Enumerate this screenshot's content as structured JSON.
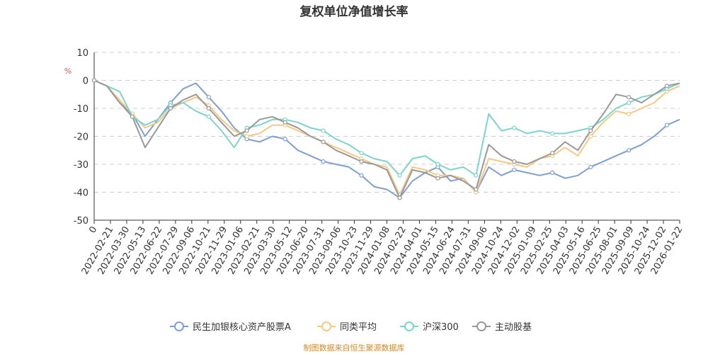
{
  "chart_data": {
    "type": "line",
    "title": "复权单位净值增长率",
    "ylabel": "%",
    "ylim": [
      -50,
      10
    ],
    "yticks": [
      10,
      0,
      -10,
      -20,
      -30,
      -40,
      -50
    ],
    "grid": true,
    "legend_position": "bottom",
    "x_tick_labels": [
      "0",
      "2022-02-21",
      "2022-03-30",
      "2022-05-13",
      "2022-06-22",
      "2022-07-29",
      "2022-09-06",
      "2022-10-21",
      "2022-11-29",
      "2023-01-06",
      "2023-02-21",
      "2023-03-30",
      "2023-05-12",
      "2023-06-20",
      "2023-07-31",
      "2023-09-06",
      "2023-10-23",
      "2023-11-29",
      "2024-01-08",
      "2024-02-22",
      "2024-04-01",
      "2024-05-15",
      "2024-06-24",
      "2024-07-31",
      "2024-09-06",
      "2024-10-24",
      "2024-12-02",
      "2025-01-09",
      "2025-02-25",
      "2025-04-03",
      "2025-05-16",
      "2025-06-25",
      "2025-08-01",
      "2025-09-09",
      "2025-10-24",
      "2025-12-02",
      "2026-01-22"
    ],
    "series": [
      {
        "name": "民生加银核心资产股票A",
        "color": "#7f9fcf",
        "values": [
          0,
          -2,
          -8,
          -12,
          -20,
          -14,
          -8,
          -3,
          -1,
          -6,
          -11,
          -17,
          -21,
          -22,
          -20,
          -21,
          -25,
          -27,
          -29,
          -30,
          -31,
          -34,
          -38,
          -39,
          -42,
          -36,
          -33,
          -31,
          -36,
          -35,
          -40,
          -31,
          -34,
          -32,
          -33,
          -34,
          -33,
          -35,
          -34,
          -31,
          -29,
          -27,
          -25,
          -23,
          -20,
          -16,
          -14
        ]
      },
      {
        "name": "同类平均",
        "color": "#f6c983",
        "values": [
          0,
          -2,
          -7,
          -12,
          -17,
          -15,
          -10,
          -8,
          -6,
          -9,
          -14,
          -18,
          -20,
          -19,
          -16,
          -16,
          -18,
          -20,
          -22,
          -24,
          -26,
          -28,
          -30,
          -31,
          -41,
          -31,
          -32,
          -34,
          -34,
          -35,
          -40,
          -28,
          -29,
          -30,
          -31,
          -28,
          -27,
          -24,
          -27,
          -20,
          -15,
          -11,
          -12,
          -10,
          -8,
          -4,
          -2
        ]
      },
      {
        "name": "沪深300",
        "color": "#7dd3cf",
        "values": [
          0,
          -2,
          -4,
          -13,
          -16,
          -14,
          -9,
          -8,
          -11,
          -13,
          -18,
          -24,
          -17,
          -16,
          -14,
          -14,
          -15,
          -17,
          -18,
          -21,
          -23,
          -26,
          -28,
          -29,
          -34,
          -28,
          -27,
          -30,
          -32,
          -31,
          -34,
          -12,
          -18,
          -17,
          -19,
          -18,
          -19,
          -19,
          -18,
          -17,
          -14,
          -10,
          -8,
          -6,
          -5,
          -3,
          -1
        ]
      },
      {
        "name": "主动股基",
        "color": "#999999",
        "values": [
          0,
          -2,
          -8,
          -13,
          -24,
          -17,
          -10,
          -7,
          -5,
          -10,
          -15,
          -20,
          -18,
          -14,
          -13,
          -15,
          -17,
          -20,
          -22,
          -25,
          -27,
          -29,
          -30,
          -32,
          -42,
          -32,
          -33,
          -35,
          -34,
          -36,
          -39,
          -23,
          -27,
          -29,
          -30,
          -28,
          -26,
          -22,
          -25,
          -18,
          -12,
          -5,
          -6,
          -8,
          -5,
          -2,
          -1
        ]
      }
    ]
  },
  "footer": {
    "source": "制图数据来自恒生聚源数据库"
  }
}
